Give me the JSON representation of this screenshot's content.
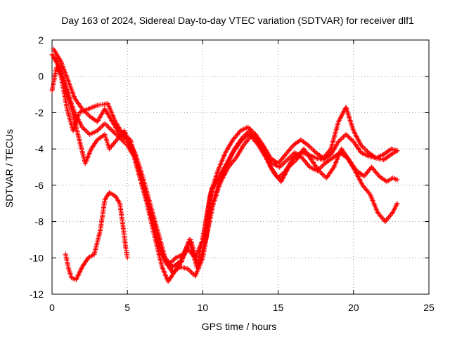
{
  "chart_data": {
    "type": "scatter",
    "title": "Day 163 of 2024, Sidereal Day-to-day VTEC variation (SDTVAR) for receiver dlf1",
    "xlabel": "GPS time / hours",
    "ylabel": "SDTVAR / TECUs",
    "xlim": [
      0,
      25
    ],
    "ylim": [
      -12,
      2
    ],
    "xticks": [
      0,
      5,
      10,
      15,
      20,
      25
    ],
    "yticks": [
      -12,
      -10,
      -8,
      -6,
      -4,
      -2,
      0,
      2
    ],
    "grid": true,
    "marker": "+",
    "color": "#ff0000",
    "series": [
      {
        "name": "track-a",
        "points": [
          [
            0.0,
            1.2
          ],
          [
            0.5,
            0.5
          ],
          [
            1.0,
            -0.8
          ],
          [
            1.5,
            -2.0
          ],
          [
            2.0,
            -2.8
          ],
          [
            2.5,
            -3.2
          ],
          [
            3.0,
            -3.0
          ],
          [
            3.5,
            -2.6
          ],
          [
            4.0,
            -3.0
          ],
          [
            4.5,
            -3.4
          ],
          [
            5.0,
            -3.8
          ],
          [
            5.5,
            -4.5
          ],
          [
            6.0,
            -6.0
          ],
          [
            6.5,
            -7.5
          ],
          [
            7.0,
            -9.0
          ],
          [
            7.5,
            -10.2
          ],
          [
            8.0,
            -10.8
          ],
          [
            8.5,
            -10.5
          ],
          [
            9.0,
            -10.6
          ],
          [
            9.5,
            -11.0
          ],
          [
            10.0,
            -10.0
          ],
          [
            10.5,
            -7.5
          ],
          [
            11.0,
            -6.0
          ],
          [
            11.5,
            -5.0
          ],
          [
            12.0,
            -4.2
          ],
          [
            12.5,
            -3.6
          ],
          [
            13.0,
            -3.2
          ],
          [
            13.5,
            -3.4
          ],
          [
            14.0,
            -4.0
          ],
          [
            14.5,
            -5.0
          ],
          [
            15.0,
            -5.6
          ],
          [
            15.5,
            -5.2
          ],
          [
            16.0,
            -4.5
          ],
          [
            16.5,
            -4.2
          ],
          [
            17.0,
            -4.3
          ],
          [
            17.5,
            -4.5
          ],
          [
            18.0,
            -4.6
          ],
          [
            18.5,
            -4.3
          ],
          [
            19.0,
            -3.6
          ],
          [
            19.5,
            -3.2
          ],
          [
            20.0,
            -3.6
          ],
          [
            20.5,
            -4.2
          ],
          [
            21.0,
            -4.4
          ],
          [
            21.5,
            -4.5
          ],
          [
            22.0,
            -4.6
          ],
          [
            22.5,
            -4.3
          ],
          [
            22.9,
            -4.1
          ]
        ]
      },
      {
        "name": "track-b",
        "points": [
          [
            0.1,
            1.5
          ],
          [
            0.6,
            0.8
          ],
          [
            1.1,
            -0.3
          ],
          [
            1.5,
            -1.2
          ],
          [
            2.0,
            -1.8
          ],
          [
            2.5,
            -2.2
          ],
          [
            3.0,
            -2.5
          ],
          [
            3.5,
            -1.8
          ],
          [
            4.0,
            -2.5
          ],
          [
            4.5,
            -3.2
          ],
          [
            5.0,
            -3.5
          ],
          [
            5.5,
            -4.2
          ],
          [
            6.0,
            -5.5
          ],
          [
            6.5,
            -7.0
          ],
          [
            7.0,
            -8.5
          ],
          [
            7.5,
            -10.0
          ],
          [
            8.0,
            -10.5
          ],
          [
            8.5,
            -10.2
          ],
          [
            9.0,
            -9.5
          ],
          [
            9.5,
            -10.0
          ],
          [
            10.0,
            -9.0
          ],
          [
            10.5,
            -6.5
          ],
          [
            11.0,
            -5.2
          ],
          [
            11.5,
            -4.2
          ],
          [
            12.0,
            -3.5
          ],
          [
            12.5,
            -3.0
          ],
          [
            13.0,
            -2.8
          ],
          [
            13.5,
            -3.2
          ],
          [
            14.0,
            -3.8
          ],
          [
            14.5,
            -4.5
          ],
          [
            15.0,
            -4.8
          ],
          [
            15.5,
            -4.3
          ],
          [
            16.0,
            -3.8
          ],
          [
            16.5,
            -3.5
          ],
          [
            17.0,
            -3.8
          ],
          [
            17.5,
            -4.2
          ],
          [
            18.0,
            -4.5
          ],
          [
            18.5,
            -4.0
          ],
          [
            19.0,
            -2.5
          ],
          [
            19.5,
            -1.7
          ],
          [
            20.0,
            -3.0
          ],
          [
            20.5,
            -3.8
          ],
          [
            21.0,
            -4.2
          ],
          [
            21.5,
            -4.5
          ],
          [
            22.0,
            -4.3
          ],
          [
            22.5,
            -4.0
          ],
          [
            22.9,
            -4.1
          ]
        ]
      },
      {
        "name": "track-c",
        "points": [
          [
            0.2,
            1.0
          ],
          [
            0.7,
            0.0
          ],
          [
            1.2,
            -1.5
          ],
          [
            1.6,
            -2.8
          ],
          [
            2.2,
            -4.8
          ],
          [
            2.6,
            -4.0
          ],
          [
            3.0,
            -3.5
          ],
          [
            3.5,
            -3.2
          ],
          [
            3.8,
            -4.0
          ],
          [
            4.3,
            -3.5
          ],
          [
            4.8,
            -3.0
          ],
          [
            5.3,
            -4.0
          ],
          [
            5.8,
            -5.5
          ],
          [
            6.3,
            -7.0
          ],
          [
            6.8,
            -8.8
          ],
          [
            7.3,
            -10.5
          ],
          [
            7.7,
            -11.3
          ],
          [
            8.1,
            -10.8
          ],
          [
            8.6,
            -10.2
          ],
          [
            9.1,
            -9.0
          ],
          [
            9.6,
            -10.5
          ],
          [
            10.1,
            -8.5
          ],
          [
            10.6,
            -6.2
          ],
          [
            11.1,
            -5.5
          ],
          [
            11.6,
            -4.8
          ],
          [
            12.1,
            -4.0
          ],
          [
            12.6,
            -3.4
          ],
          [
            13.1,
            -3.0
          ],
          [
            13.6,
            -3.5
          ],
          [
            14.1,
            -4.2
          ],
          [
            14.6,
            -4.8
          ],
          [
            15.1,
            -5.0
          ],
          [
            15.6,
            -4.6
          ],
          [
            16.1,
            -4.2
          ],
          [
            16.6,
            -4.5
          ],
          [
            17.1,
            -5.0
          ],
          [
            17.6,
            -5.2
          ],
          [
            18.1,
            -4.8
          ],
          [
            18.6,
            -4.5
          ],
          [
            19.1,
            -4.2
          ],
          [
            19.6,
            -4.5
          ],
          [
            20.1,
            -5.2
          ],
          [
            20.6,
            -6.0
          ],
          [
            21.1,
            -6.5
          ],
          [
            21.6,
            -7.5
          ],
          [
            22.1,
            -8.0
          ],
          [
            22.6,
            -7.5
          ],
          [
            22.9,
            -7.0
          ]
        ]
      },
      {
        "name": "track-d",
        "points": [
          [
            0.0,
            -0.8
          ],
          [
            0.3,
            0.5
          ],
          [
            0.6,
            0.0
          ],
          [
            1.0,
            -1.8
          ],
          [
            1.4,
            -3.0
          ],
          [
            1.8,
            -2.0
          ],
          [
            2.4,
            -1.8
          ],
          [
            3.0,
            -1.6
          ],
          [
            3.7,
            -1.5
          ],
          [
            4.2,
            -2.5
          ],
          [
            4.7,
            -3.2
          ],
          [
            5.2,
            -3.5
          ],
          [
            5.7,
            -5.0
          ],
          [
            6.2,
            -6.5
          ],
          [
            6.7,
            -8.0
          ],
          [
            7.2,
            -9.5
          ],
          [
            7.7,
            -10.4
          ],
          [
            8.2,
            -10.0
          ],
          [
            8.7,
            -9.8
          ],
          [
            9.2,
            -9.0
          ],
          [
            9.7,
            -10.5
          ],
          [
            10.2,
            -9.0
          ],
          [
            10.7,
            -7.0
          ],
          [
            11.2,
            -5.8
          ],
          [
            11.7,
            -5.0
          ],
          [
            12.2,
            -4.5
          ],
          [
            12.7,
            -3.8
          ],
          [
            13.2,
            -3.3
          ],
          [
            13.7,
            -3.8
          ],
          [
            14.2,
            -4.5
          ],
          [
            14.7,
            -5.3
          ],
          [
            15.2,
            -5.8
          ],
          [
            15.7,
            -5.0
          ],
          [
            16.2,
            -4.6
          ],
          [
            16.7,
            -4.0
          ],
          [
            17.2,
            -4.6
          ],
          [
            17.7,
            -5.2
          ],
          [
            18.2,
            -5.6
          ],
          [
            18.7,
            -5.0
          ],
          [
            19.2,
            -4.0
          ],
          [
            19.7,
            -4.6
          ],
          [
            20.2,
            -5.2
          ],
          [
            20.7,
            -5.5
          ],
          [
            21.2,
            -5.0
          ],
          [
            21.7,
            -5.5
          ],
          [
            22.2,
            -5.8
          ],
          [
            22.6,
            -5.6
          ],
          [
            22.9,
            -5.7
          ]
        ]
      },
      {
        "name": "track-e",
        "points": [
          [
            0.9,
            -9.8
          ],
          [
            1.1,
            -10.6
          ],
          [
            1.3,
            -11.1
          ],
          [
            1.6,
            -11.2
          ],
          [
            2.0,
            -10.5
          ],
          [
            2.4,
            -10.0
          ],
          [
            2.8,
            -9.8
          ],
          [
            3.2,
            -8.5
          ],
          [
            3.5,
            -6.8
          ],
          [
            3.8,
            -6.4
          ],
          [
            4.2,
            -6.6
          ],
          [
            4.5,
            -7.0
          ],
          [
            4.7,
            -8.2
          ],
          [
            4.9,
            -9.5
          ],
          [
            5.0,
            -10.0
          ]
        ]
      }
    ]
  }
}
